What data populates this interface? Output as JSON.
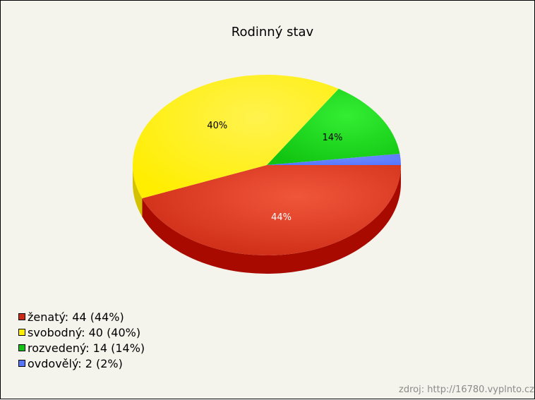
{
  "chart_data": {
    "type": "pie",
    "title": "Rodinný stav",
    "slices": [
      {
        "label": "ženatý",
        "value": 44,
        "percent": "44%",
        "legend": "ženatý: 44 (44%)",
        "color": "#cc2a14",
        "top": "#f0563a",
        "side": "#a80a00",
        "text_light": true
      },
      {
        "label": "svobodný",
        "value": 40,
        "percent": "40%",
        "legend": "svobodný: 40 (40%)",
        "color": "#ffee00",
        "top": "#fff24d",
        "side": "#d4c200",
        "text_light": false
      },
      {
        "label": "rozvedený",
        "value": 14,
        "percent": "14%",
        "legend": "rozvedený: 14 (14%)",
        "color": "#11c411",
        "top": "#33ee33",
        "side": "#0a8a0a",
        "text_light": false
      },
      {
        "label": "ovdovělý",
        "value": 2,
        "percent": "2%",
        "legend": "ovdovělý: 2 (2%)",
        "color": "#5577ff",
        "top": "#6a88ff",
        "side": "#3355dd",
        "text_light": false
      }
    ],
    "source": "zdroj: http://16780.vyplnto.cz"
  }
}
